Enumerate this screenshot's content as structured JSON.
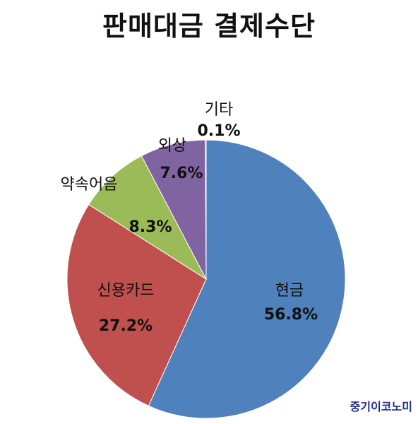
{
  "chart_data": {
    "type": "pie",
    "title": "판매대금 결제수단",
    "slices": [
      {
        "name": "현금",
        "label": "56.8%",
        "value": 56.8,
        "color": "#4f81bd"
      },
      {
        "name": "신용카드",
        "label": "27.2%",
        "value": 27.2,
        "color": "#c0504d"
      },
      {
        "name": "약속어음",
        "label": "8.3%",
        "value": 8.3,
        "color": "#9bbb59"
      },
      {
        "name": "외상",
        "label": "7.6%",
        "value": 7.6,
        "color": "#8064a2"
      },
      {
        "name": "기타",
        "label": "0.1%",
        "value": 0.1,
        "color": "#4bacc6"
      }
    ],
    "legend": "none"
  },
  "watermark": "중기이코노미"
}
